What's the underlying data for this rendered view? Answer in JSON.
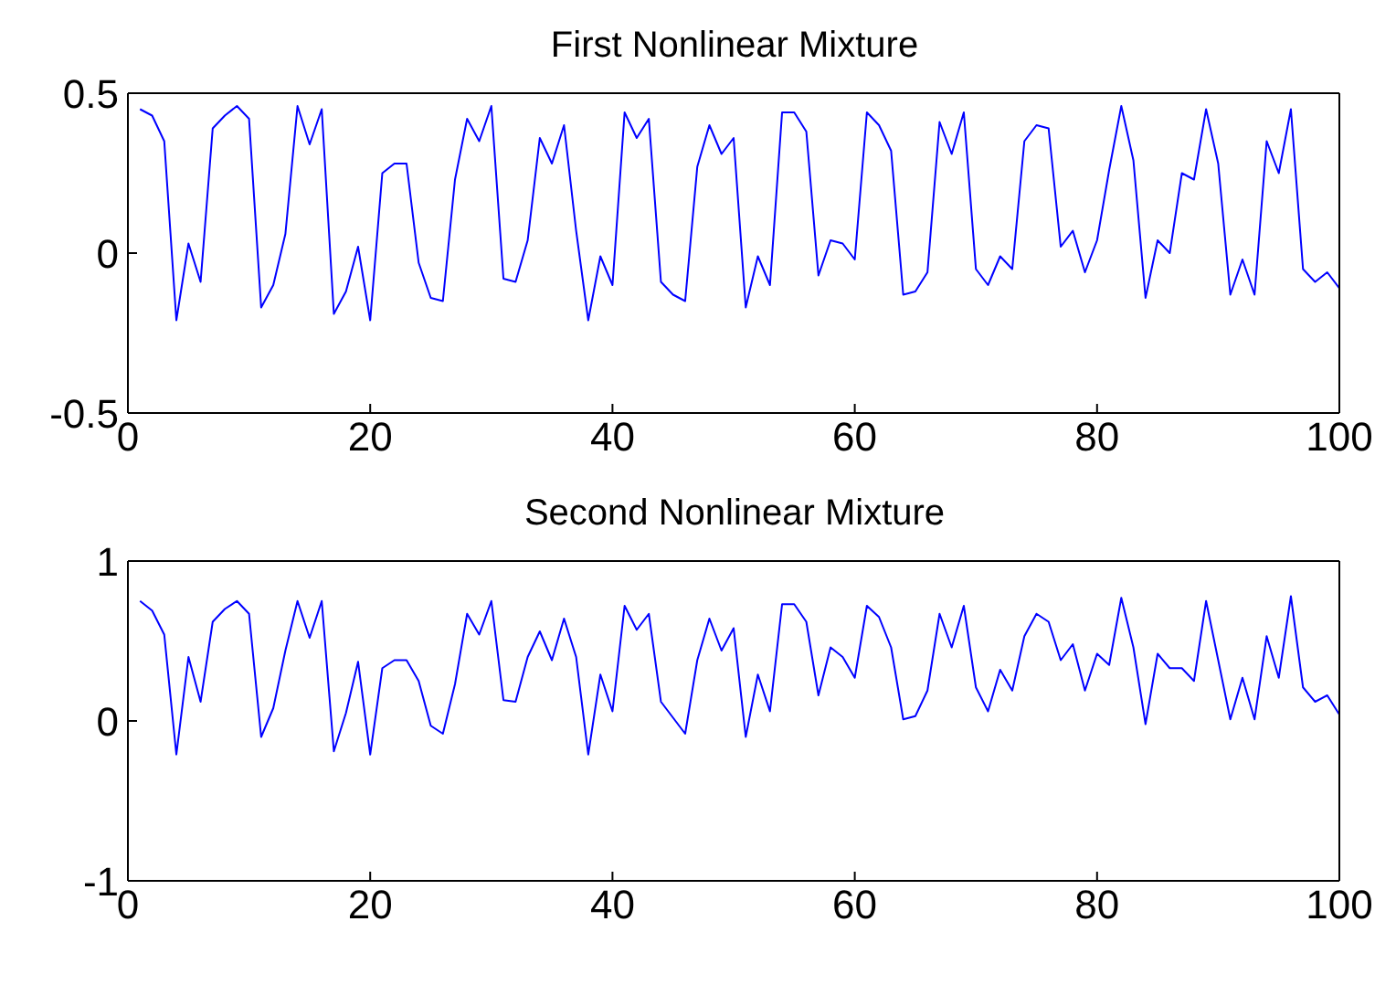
{
  "chart_data": [
    {
      "type": "line",
      "title": "First Nonlinear Mixture",
      "x": [
        1,
        2,
        3,
        4,
        5,
        6,
        7,
        8,
        9,
        10,
        11,
        12,
        13,
        14,
        15,
        16,
        17,
        18,
        19,
        20,
        21,
        22,
        23,
        24,
        25,
        26,
        27,
        28,
        29,
        30,
        31,
        32,
        33,
        34,
        35,
        36,
        37,
        38,
        39,
        40,
        41,
        42,
        43,
        44,
        45,
        46,
        47,
        48,
        49,
        50,
        51,
        52,
        53,
        54,
        55,
        56,
        57,
        58,
        59,
        60,
        61,
        62,
        63,
        64,
        65,
        66,
        67,
        68,
        69,
        70,
        71,
        72,
        73,
        74,
        75,
        76,
        77,
        78,
        79,
        80,
        81,
        82,
        83,
        84,
        85,
        86,
        87,
        88,
        89,
        90,
        91,
        92,
        93,
        94,
        95,
        96,
        97,
        98,
        99,
        100
      ],
      "series": [
        {
          "color": "#0000ff",
          "values": [
            0.45,
            0.43,
            0.35,
            -0.21,
            0.03,
            -0.09,
            0.39,
            0.43,
            0.46,
            0.42,
            -0.17,
            -0.1,
            0.06,
            0.46,
            0.34,
            0.45,
            -0.19,
            -0.12,
            0.02,
            -0.21,
            0.25,
            0.28,
            0.28,
            -0.03,
            -0.14,
            -0.15,
            0.23,
            0.42,
            0.35,
            0.46,
            -0.08,
            -0.09,
            0.04,
            0.36,
            0.28,
            0.4,
            0.07,
            -0.21,
            -0.01,
            -0.1,
            0.44,
            0.36,
            0.42,
            -0.09,
            -0.13,
            -0.15,
            0.27,
            0.4,
            0.31,
            0.36,
            -0.17,
            -0.01,
            -0.1,
            0.44,
            0.44,
            0.38,
            -0.07,
            0.04,
            0.03,
            -0.02,
            0.44,
            0.4,
            0.32,
            -0.13,
            -0.12,
            -0.06,
            0.41,
            0.31,
            0.44,
            -0.05,
            -0.1,
            -0.01,
            -0.05,
            0.35,
            0.4,
            0.39,
            0.02,
            0.07,
            -0.06,
            0.04,
            0.26,
            0.46,
            0.29,
            -0.14,
            0.04,
            0.0,
            0.25,
            0.23,
            0.45,
            0.28,
            -0.13,
            -0.02,
            -0.13,
            0.35,
            0.25,
            0.45,
            -0.05,
            -0.09,
            -0.06,
            -0.11
          ]
        }
      ],
      "xlim": [
        0,
        100
      ],
      "xticks": [
        0,
        20,
        40,
        60,
        80,
        100
      ],
      "ylim": [
        -0.5,
        0.5
      ],
      "yticks": [
        -0.5,
        0,
        0.5
      ]
    },
    {
      "type": "line",
      "title": "Second Nonlinear Mixture",
      "x": [
        1,
        2,
        3,
        4,
        5,
        6,
        7,
        8,
        9,
        10,
        11,
        12,
        13,
        14,
        15,
        16,
        17,
        18,
        19,
        20,
        21,
        22,
        23,
        24,
        25,
        26,
        27,
        28,
        29,
        30,
        31,
        32,
        33,
        34,
        35,
        36,
        37,
        38,
        39,
        40,
        41,
        42,
        43,
        44,
        45,
        46,
        47,
        48,
        49,
        50,
        51,
        52,
        53,
        54,
        55,
        56,
        57,
        58,
        59,
        60,
        61,
        62,
        63,
        64,
        65,
        66,
        67,
        68,
        69,
        70,
        71,
        72,
        73,
        74,
        75,
        76,
        77,
        78,
        79,
        80,
        81,
        82,
        83,
        84,
        85,
        86,
        87,
        88,
        89,
        90,
        91,
        92,
        93,
        94,
        95,
        96,
        97,
        98,
        99,
        100
      ],
      "series": [
        {
          "color": "#0000ff",
          "values": [
            0.75,
            0.69,
            0.54,
            -0.21,
            0.4,
            0.12,
            0.62,
            0.7,
            0.75,
            0.67,
            -0.1,
            0.08,
            0.44,
            0.75,
            0.52,
            0.75,
            -0.19,
            0.05,
            0.37,
            -0.21,
            0.33,
            0.38,
            0.38,
            0.25,
            -0.03,
            -0.08,
            0.23,
            0.67,
            0.54,
            0.75,
            0.13,
            0.12,
            0.4,
            0.56,
            0.38,
            0.64,
            0.4,
            -0.21,
            0.29,
            0.06,
            0.72,
            0.57,
            0.67,
            0.12,
            0.02,
            -0.08,
            0.38,
            0.64,
            0.44,
            0.58,
            -0.1,
            0.29,
            0.06,
            0.73,
            0.73,
            0.62,
            0.16,
            0.46,
            0.4,
            0.27,
            0.72,
            0.65,
            0.46,
            0.01,
            0.03,
            0.19,
            0.67,
            0.46,
            0.72,
            0.21,
            0.06,
            0.32,
            0.19,
            0.53,
            0.67,
            0.62,
            0.38,
            0.48,
            0.19,
            0.42,
            0.35,
            0.77,
            0.46,
            -0.02,
            0.42,
            0.33,
            0.33,
            0.25,
            0.75,
            0.38,
            0.01,
            0.27,
            0.01,
            0.53,
            0.27,
            0.78,
            0.21,
            0.12,
            0.16,
            0.04
          ]
        }
      ],
      "xlim": [
        0,
        100
      ],
      "xticks": [
        0,
        20,
        40,
        60,
        80,
        100
      ],
      "ylim": [
        -1,
        1
      ],
      "yticks": [
        -1,
        0,
        1
      ]
    }
  ]
}
